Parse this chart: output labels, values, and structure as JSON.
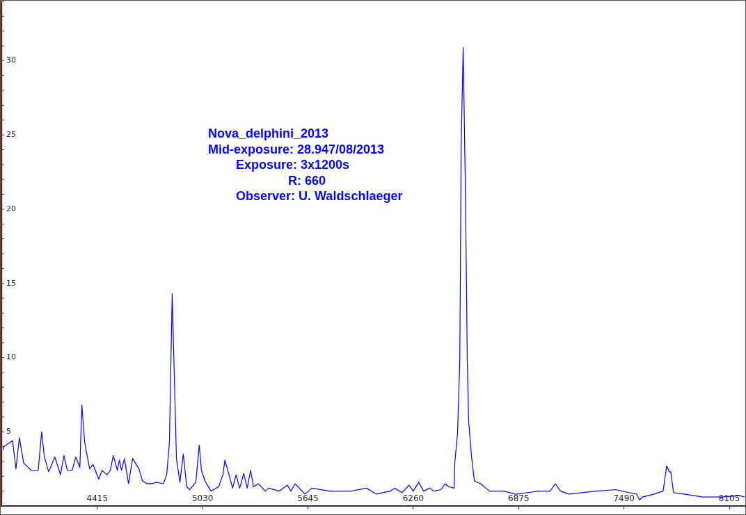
{
  "chart_data": {
    "type": "line",
    "annotations": [
      "Nova_delphini_2013",
      "Mid-exposure: 28.947/08/2013",
      "Exposure: 3x1200s",
      "R: 660",
      "Observer: U. Waldschlaeger"
    ],
    "x": [
      3863,
      3871,
      3920,
      3940,
      3960,
      3985,
      4029,
      4070,
      4090,
      4106,
      4131,
      4167,
      4200,
      4220,
      4240,
      4268,
      4289,
      4313,
      4325,
      4341,
      4370,
      4390,
      4423,
      4443,
      4471,
      4491,
      4508,
      4532,
      4544,
      4556,
      4573,
      4597,
      4621,
      4658,
      4678,
      4706,
      4735,
      4759,
      4800,
      4820,
      4836,
      4852,
      4877,
      4897,
      4917,
      4937,
      4954,
      4990,
      5010,
      5023,
      5043,
      5079,
      5124,
      5148,
      5160,
      5205,
      5225,
      5246,
      5270,
      5290,
      5310,
      5327,
      5355,
      5396,
      5416,
      5477,
      5525,
      5545,
      5570,
      5627,
      5667,
      5773,
      5894,
      5987,
      6044,
      6125,
      6150,
      6194,
      6235,
      6259,
      6291,
      6320,
      6356,
      6381,
      6421,
      6446,
      6466,
      6498,
      6502,
      6518,
      6531,
      6535,
      6539,
      6551,
      6563,
      6571,
      6575,
      6583,
      6600,
      6616,
      6652,
      6705,
      6786,
      6855,
      6867,
      6989,
      7058,
      7090,
      7119,
      7167,
      7329,
      7443,
      7516,
      7564,
      7581,
      7597,
      7666,
      7718,
      7739,
      7755,
      7763,
      7779,
      7840,
      7950,
      8059,
      8164,
      8193
    ],
    "values": [
      3.8,
      4.0,
      4.4,
      2.5,
      4.6,
      2.9,
      2.4,
      2.4,
      5.0,
      3.3,
      2.3,
      3.3,
      2.1,
      3.4,
      2.4,
      2.4,
      3.3,
      2.6,
      6.8,
      4.3,
      2.5,
      2.8,
      1.8,
      2.4,
      2.1,
      2.4,
      3.4,
      2.4,
      3.1,
      2.4,
      3.2,
      1.5,
      3.2,
      2.5,
      1.7,
      1.5,
      1.5,
      1.6,
      1.5,
      2.1,
      4.3,
      14.3,
      3.2,
      1.6,
      3.5,
      1.3,
      1.1,
      1.6,
      4.1,
      2.4,
      1.7,
      1.0,
      1.3,
      2.1,
      3.1,
      1.2,
      2.1,
      1.2,
      2.2,
      1.2,
      2.4,
      1.3,
      1.5,
      1.0,
      1.2,
      1.0,
      1.4,
      1.0,
      1.5,
      0.8,
      1.2,
      1.0,
      1.0,
      1.2,
      0.8,
      1.0,
      1.2,
      0.9,
      1.4,
      1.0,
      1.6,
      1.0,
      1.2,
      1.0,
      1.1,
      1.5,
      1.3,
      1.2,
      2.9,
      4.9,
      9.7,
      16.1,
      24.2,
      30.9,
      22.0,
      14.1,
      9.7,
      5.7,
      3.3,
      1.7,
      1.5,
      1.0,
      1.0,
      0.8,
      0.8,
      1.0,
      1.0,
      1.5,
      1.0,
      0.8,
      1.0,
      1.1,
      0.9,
      0.8,
      0.4,
      0.6,
      0.8,
      1.0,
      2.7,
      2.3,
      2.3,
      0.9,
      0.8,
      0.6,
      0.6,
      0.7,
      0.6
    ],
    "color": "#0000ff",
    "xlim": [
      3855,
      8194
    ],
    "ylim": [
      0,
      34
    ],
    "xticks": [
      4415,
      5030,
      5645,
      6260,
      6875,
      7490,
      8105
    ],
    "yticks": [
      {
        "value": 1,
        "label": null
      },
      {
        "value": 2,
        "label": null
      },
      {
        "value": 3,
        "label": null
      },
      {
        "value": 4,
        "label": null
      },
      5,
      {
        "value": 6,
        "label": null
      },
      {
        "value": 7,
        "label": null
      },
      {
        "value": 8,
        "label": null
      },
      {
        "value": 9,
        "label": null
      },
      10,
      {
        "value": 11,
        "label": null
      },
      {
        "value": 12,
        "label": null
      },
      {
        "value": 13,
        "label": null
      },
      {
        "value": 14,
        "label": null
      },
      15,
      {
        "value": 16,
        "label": null
      },
      {
        "value": 17,
        "label": null
      },
      {
        "value": 18,
        "label": null
      },
      {
        "value": 19,
        "label": null
      },
      20,
      {
        "value": 21,
        "label": null
      },
      {
        "value": 22,
        "label": null
      },
      {
        "value": 23,
        "label": null
      },
      {
        "value": 24,
        "label": null
      },
      25,
      {
        "value": 26,
        "label": null
      },
      {
        "value": 27,
        "label": null
      },
      {
        "value": 28,
        "label": null
      },
      {
        "value": 29,
        "label": null
      },
      30,
      {
        "value": 31,
        "label": null
      },
      {
        "value": 32,
        "label": null
      },
      {
        "value": 33,
        "label": null
      },
      {
        "value": 34,
        "label": null
      }
    ],
    "grid": false,
    "legend": false,
    "marker": "none",
    "line_style": "solid"
  }
}
